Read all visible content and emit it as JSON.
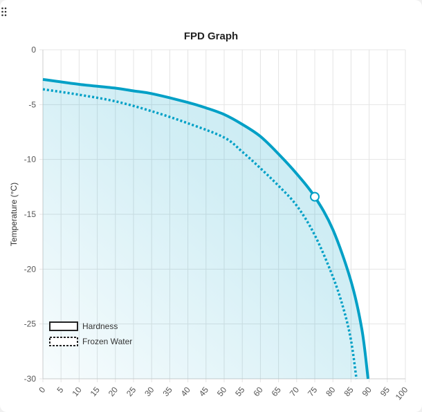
{
  "chart_data": {
    "type": "line",
    "title": "FPD Graph",
    "xlabel": "",
    "ylabel": "Temperature (°C)",
    "xlim": [
      0,
      100
    ],
    "ylim": [
      -30,
      0
    ],
    "xticks": [
      "0",
      "5",
      "10",
      "15",
      "20",
      "25",
      "30",
      "35",
      "40",
      "45",
      "50",
      "55",
      "60",
      "65",
      "70",
      "75",
      "80",
      "85",
      "90",
      "95",
      "100"
    ],
    "yticks": [
      "0",
      "-5",
      "-10",
      "-15",
      "-20",
      "-25",
      "-30"
    ],
    "grid": true,
    "legend_position": "bottom-left",
    "series": [
      {
        "name": "Hardness",
        "style": "solid",
        "color": "#00a0c6",
        "x": [
          0,
          10,
          20,
          25,
          30,
          40,
          45,
          50,
          55,
          60,
          65,
          70,
          75,
          80,
          85,
          88,
          89.7
        ],
        "y": [
          -2.7,
          -3.15,
          -3.5,
          -3.75,
          -4.0,
          -4.8,
          -5.3,
          -5.9,
          -6.8,
          -7.9,
          -9.5,
          -11.3,
          -13.4,
          -16.4,
          -21.1,
          -25.5,
          -30
        ]
      },
      {
        "name": "Frozen Water",
        "style": "dotted",
        "color": "#00a0c6",
        "x": [
          0,
          10,
          20,
          30,
          40,
          50,
          55,
          60,
          65,
          70,
          75,
          80,
          83,
          85,
          86.5
        ],
        "y": [
          -3.6,
          -4.1,
          -4.7,
          -5.6,
          -6.7,
          -8.0,
          -9.3,
          -10.8,
          -12.4,
          -14.2,
          -16.9,
          -20.7,
          -23.7,
          -26.5,
          -30
        ]
      }
    ],
    "marker": {
      "x": 75,
      "y": -13.4
    }
  }
}
